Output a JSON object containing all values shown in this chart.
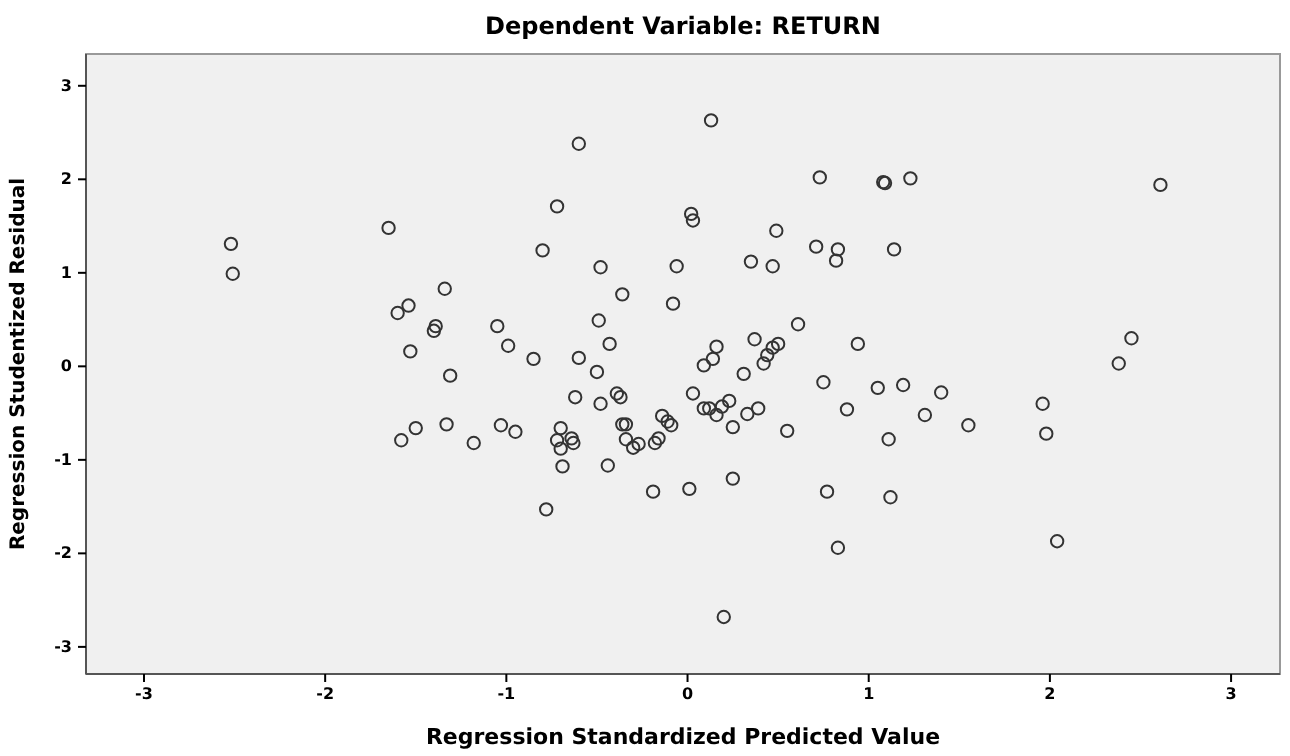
{
  "chart_data": {
    "type": "scatter",
    "title": "Dependent Variable: RETURN",
    "xlabel": "Regression Standardized Predicted Value",
    "ylabel": "Regression Studentized Residual",
    "xlim": [
      -3.32,
      3.27
    ],
    "ylim": [
      -3.29,
      3.34
    ],
    "xticks": [
      -3,
      -2,
      -1,
      0,
      1,
      2,
      3
    ],
    "yticks": [
      -3,
      -2,
      -1,
      0,
      1,
      2,
      3
    ],
    "grid": false,
    "marker": "circle",
    "series": [
      {
        "color": "#333333",
        "x": [
          -2.52,
          -2.51,
          -1.65,
          -1.34,
          -1.54,
          -1.6,
          -1.39,
          -1.4,
          -1.53,
          -1.31,
          -1.33,
          -1.5,
          -1.58,
          -1.18,
          0.13,
          -0.6,
          0.73,
          -0.72,
          0.02,
          0.03,
          0.49,
          -0.8,
          0.71,
          0.83,
          0.82,
          -0.48,
          -0.06,
          0.35,
          0.47,
          -0.36,
          -0.08,
          -1.05,
          -0.49,
          0.61,
          -0.99,
          -0.43,
          -0.85,
          -0.6,
          0.16,
          0.37,
          0.5,
          0.47,
          0.44,
          0.14,
          0.09,
          0.42,
          0.94,
          -0.5,
          0.31,
          0.75,
          -0.39,
          -0.37,
          0.03,
          -0.62,
          -0.48,
          0.09,
          0.12,
          0.19,
          0.23,
          0.16,
          0.33,
          0.39,
          0.88,
          -0.14,
          -0.11,
          -0.09,
          -1.03,
          -0.95,
          -0.7,
          -0.36,
          -0.34,
          -0.72,
          -0.64,
          -0.63,
          -0.7,
          -0.34,
          -0.27,
          -0.3,
          -0.16,
          -0.18,
          0.25,
          0.55,
          -0.69,
          -0.44,
          0.25,
          -0.19,
          0.01,
          0.77,
          -0.78,
          0.83,
          0.2,
          1.08,
          1.09,
          1.23,
          2.61,
          1.14,
          2.45,
          2.38,
          1.05,
          1.19,
          1.4,
          1.31,
          1.55,
          1.11,
          1.96,
          1.98,
          1.12,
          2.04
        ],
        "values": [
          1.31,
          0.99,
          1.48,
          0.83,
          0.65,
          0.57,
          0.43,
          0.38,
          0.16,
          -0.1,
          -0.62,
          -0.66,
          -0.79,
          -0.82,
          2.63,
          2.38,
          2.02,
          1.71,
          1.63,
          1.56,
          1.45,
          1.24,
          1.28,
          1.25,
          1.13,
          1.06,
          1.07,
          1.12,
          1.07,
          0.77,
          0.67,
          0.43,
          0.49,
          0.45,
          0.22,
          0.24,
          0.08,
          0.09,
          0.21,
          0.29,
          0.24,
          0.2,
          0.12,
          0.08,
          0.01,
          0.03,
          0.24,
          -0.06,
          -0.08,
          -0.17,
          -0.29,
          -0.33,
          -0.29,
          -0.33,
          -0.4,
          -0.45,
          -0.45,
          -0.43,
          -0.37,
          -0.52,
          -0.51,
          -0.45,
          -0.46,
          -0.53,
          -0.59,
          -0.63,
          -0.63,
          -0.7,
          -0.66,
          -0.62,
          -0.62,
          -0.79,
          -0.77,
          -0.82,
          -0.88,
          -0.78,
          -0.83,
          -0.87,
          -0.77,
          -0.82,
          -0.65,
          -0.69,
          -1.07,
          -1.06,
          -1.2,
          -1.34,
          -1.31,
          -1.34,
          -1.53,
          -1.94,
          -2.68,
          1.97,
          1.96,
          2.01,
          1.94,
          1.25,
          0.3,
          0.03,
          -0.23,
          -0.2,
          -0.28,
          -0.52,
          -0.63,
          -0.78,
          -0.4,
          -0.72,
          -1.4,
          -1.87
        ]
      }
    ]
  }
}
